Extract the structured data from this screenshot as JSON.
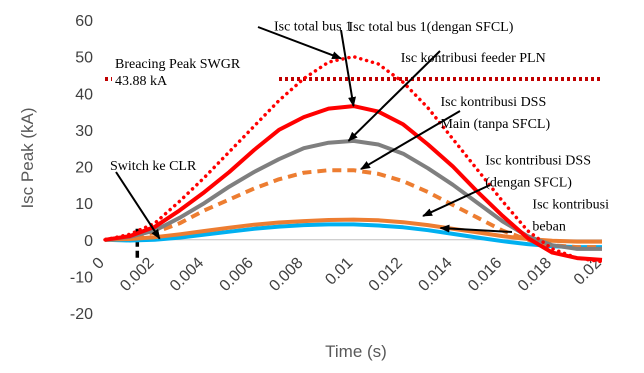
{
  "chart_data": {
    "type": "line",
    "xlabel": "Time (s)",
    "ylabel": "Isc Peak (kA)",
    "xlim": [
      0,
      0.02
    ],
    "ylim": [
      -20,
      60
    ],
    "x_ticks": [
      0,
      0.002,
      0.004,
      0.006,
      0.008,
      0.01,
      0.012,
      0.014,
      0.016,
      0.018,
      0.02
    ],
    "x_tick_labels": [
      "0",
      "0.002",
      "0.004",
      "0.006",
      "0.008",
      "0.01",
      "0.012",
      "0.014",
      "0.016",
      "0.018",
      "0.02"
    ],
    "y_ticks": [
      -20,
      -10,
      0,
      10,
      20,
      30,
      40,
      50,
      60
    ],
    "y_tick_labels": [
      "-20",
      "-10",
      "0",
      "10",
      "20",
      "30",
      "40",
      "50",
      "60"
    ],
    "grid": false,
    "legend": "none",
    "x": [
      0,
      0.001,
      0.002,
      0.003,
      0.004,
      0.005,
      0.006,
      0.007,
      0.008,
      0.009,
      0.01,
      0.011,
      0.012,
      0.013,
      0.014,
      0.015,
      0.016,
      0.017,
      0.018,
      0.019,
      0.02
    ],
    "series": [
      {
        "color": "#ff0000",
        "style": "dotted",
        "values": [
          0,
          1.5,
          4.5,
          10.5,
          17,
          24,
          31,
          38,
          44,
          48.5,
          50,
          48,
          43,
          36,
          27.5,
          19,
          10.5,
          2.5,
          -2.5,
          -5,
          -6
        ]
      },
      {
        "color": "#ff0000",
        "style": "solid",
        "values": [
          0,
          1,
          3.5,
          8,
          13,
          18.5,
          24.5,
          30,
          33.5,
          35.8,
          36.5,
          35,
          31.5,
          26,
          20,
          13,
          6.5,
          0.5,
          -3.5,
          -5,
          -5.5
        ]
      },
      {
        "color": "#7f7f7f",
        "style": "solid",
        "values": [
          0,
          0.8,
          2.5,
          6,
          10,
          14.5,
          18.5,
          22,
          25,
          26.5,
          27,
          26,
          23.5,
          19.5,
          15,
          10,
          5,
          1,
          -1.5,
          -2.5,
          -2.5
        ]
      },
      {
        "color": "#ed7d31",
        "style": "dashed",
        "values": [
          0,
          0.5,
          2,
          4.5,
          8,
          11,
          14,
          16.5,
          18.3,
          19,
          19,
          18,
          16,
          13,
          9.5,
          6,
          2.5,
          0,
          -1.5,
          -2,
          -2
        ]
      },
      {
        "color": "#ed7d31",
        "style": "solid",
        "values": [
          0,
          0.2,
          0.7,
          1.5,
          2.4,
          3.3,
          4.1,
          4.7,
          5.1,
          5.4,
          5.5,
          5.3,
          4.8,
          4,
          3,
          2,
          1,
          0.2,
          -0.3,
          -0.5,
          -0.5
        ]
      },
      {
        "color": "#00b0f0",
        "style": "solid",
        "values": [
          0,
          -0.2,
          0,
          0.6,
          1.4,
          2.2,
          3,
          3.6,
          4,
          4.2,
          4.2,
          3.9,
          3.4,
          2.6,
          1.6,
          0.6,
          -0.4,
          -1.2,
          -1.8,
          -2,
          -2
        ]
      }
    ],
    "reference_line": {
      "y": 43.88,
      "color": "#c00000",
      "style": "dotted",
      "label_line1": "Breacing Peak SWGR",
      "label_line2": "43.88 kA"
    },
    "switch_marker": {
      "x": 0.0013,
      "y_range": [
        -6,
        3
      ],
      "label": "Switch ke CLR"
    },
    "annotations": [
      {
        "text": "Isc total bus 1",
        "text_x": 0.0068,
        "text_y": 57.2,
        "target_x": 0.0095,
        "target_y": 49.5
      },
      {
        "text": "Isc total bus 1(dengan SFCL)",
        "text_x": 0.0098,
        "text_y": 57,
        "target_x": 0.01,
        "target_y": 36.5
      },
      {
        "text": "Isc kontribusi feeder PLN",
        "text_x": 0.0119,
        "text_y": 48.5,
        "target_x": 0.0098,
        "target_y": 27
      },
      {
        "text": "Isc kontribusi DSS",
        "text_x": 0.0135,
        "text_y": 36.5
      },
      {
        "text": "Main (tanpa SFCL)",
        "text_x": 0.0135,
        "text_y": 30.5,
        "target_x": 0.0103,
        "target_y": 19.3
      },
      {
        "text": "Isc kontribusi DSS",
        "text_x": 0.0153,
        "text_y": 20.5
      },
      {
        "text": "(dengan SFCL)",
        "text_x": 0.0153,
        "text_y": 14.5,
        "target_x": 0.0128,
        "target_y": 6.5
      },
      {
        "text": "Isc kontribusi",
        "text_x": 0.0172,
        "text_y": 8.5
      },
      {
        "text": "beban",
        "text_x": 0.0172,
        "text_y": 2.5,
        "target_x": 0.0135,
        "target_y": 3.2
      },
      {
        "text": "Switch ke CLR",
        "text_x": 0.0002,
        "text_y": 19,
        "target_x": 0.0022,
        "target_y": 0.3
      }
    ]
  }
}
